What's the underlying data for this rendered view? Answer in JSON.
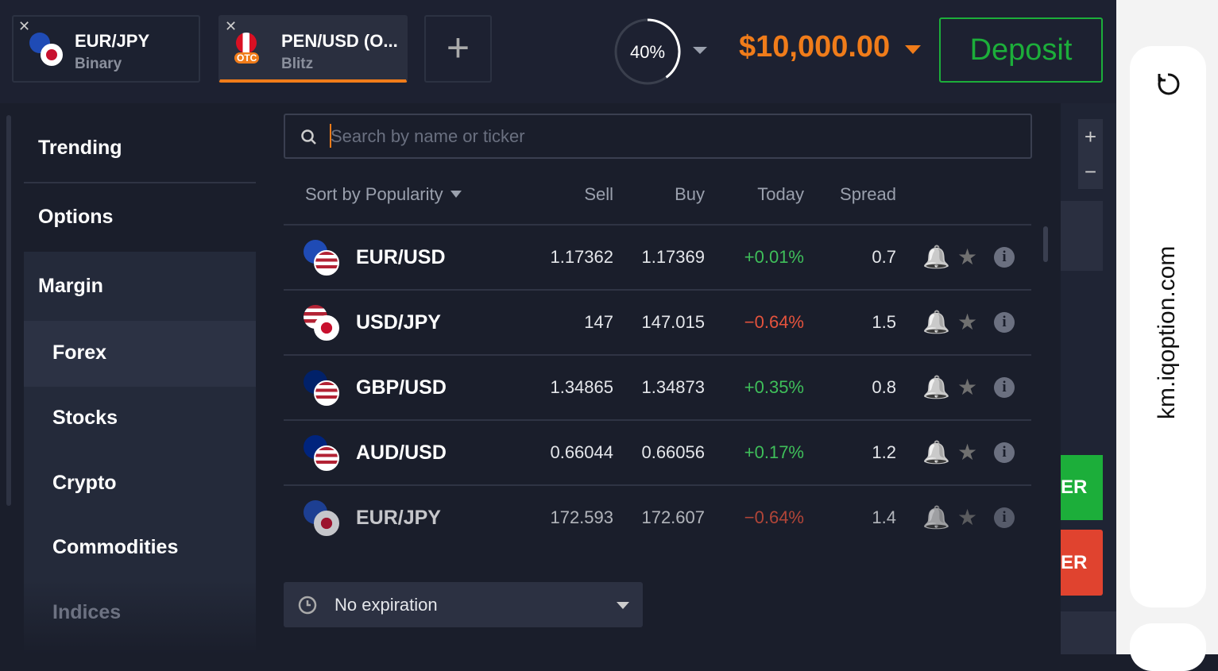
{
  "tabs": [
    {
      "pair": "EUR/JPY",
      "mode": "Binary"
    },
    {
      "pair": "PEN/USD (O...",
      "mode": "Blitz",
      "badge": "OTC"
    }
  ],
  "progress_label": "40%",
  "balance": "$10,000.00",
  "deposit": "Deposit",
  "sidebar": [
    "Trending",
    "Options",
    "Margin",
    "Forex",
    "Stocks",
    "Crypto",
    "Commodities",
    "Indices"
  ],
  "search_placeholder": "Search by name or ticker",
  "table": {
    "columns": [
      "Sort by Popularity",
      "Sell",
      "Buy",
      "Today",
      "Spread"
    ],
    "rows": [
      [
        "EUR/USD",
        "1.17362",
        "1.17369",
        "+0.01%",
        "0.7"
      ],
      [
        "USD/JPY",
        "147",
        "147.015",
        "−0.64%",
        "1.5"
      ],
      [
        "GBP/USD",
        "1.34865",
        "1.34873",
        "+0.35%",
        "0.8"
      ],
      [
        "AUD/USD",
        "0.66044",
        "0.66056",
        "+0.17%",
        "1.2"
      ],
      [
        "EUR/JPY",
        "172.593",
        "172.607",
        "−0.64%",
        "1.4"
      ]
    ]
  },
  "expiration": "No expiration",
  "side_buttons": [
    "ER",
    "ER"
  ],
  "url": "km.iqoption.com"
}
